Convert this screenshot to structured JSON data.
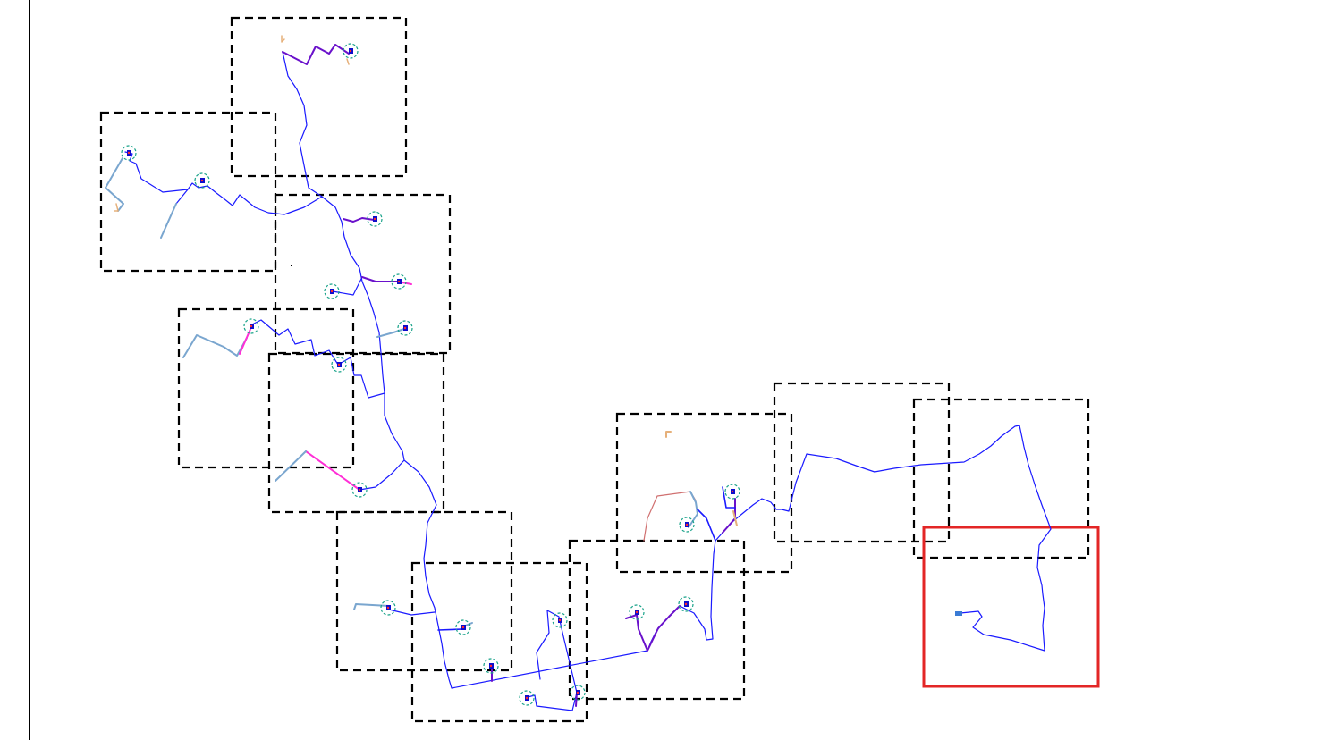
{
  "map": {
    "colors": {
      "route": "#1a1aff",
      "route_bold": "#6a11cb",
      "branch_lightblue": "#7aa6cf",
      "branch_magenta": "#ff2fd6",
      "branch_red": "#d07070",
      "branch_orange": "#e6b07a",
      "marker_ring": "#1aa38a",
      "marker_fill": "#0d0dcc",
      "marker_dot": "#ff2b2b",
      "tile_border": "#000000",
      "highlight_border": "#e32626"
    },
    "tile_style": "dashed",
    "highlight_style": "solid"
  }
}
